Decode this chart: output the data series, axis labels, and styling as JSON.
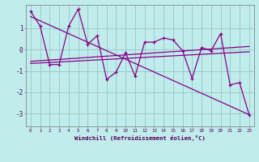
{
  "xlabel": "Windchill (Refroidissement éolien,°C)",
  "xlim": [
    -0.5,
    23.5
  ],
  "ylim": [
    -3.6,
    2.1
  ],
  "xticks": [
    0,
    1,
    2,
    3,
    4,
    5,
    6,
    7,
    8,
    9,
    10,
    11,
    12,
    13,
    14,
    15,
    16,
    17,
    18,
    19,
    20,
    21,
    22,
    23
  ],
  "yticks": [
    -3,
    -2,
    -1,
    0,
    1
  ],
  "bg_color": "#c0ecec",
  "line_color": "#880088",
  "grid_color": "#99cccc",
  "data_x": [
    0,
    1,
    2,
    3,
    4,
    5,
    6,
    7,
    8,
    9,
    10,
    11,
    12,
    13,
    14,
    15,
    16,
    17,
    18,
    19,
    20,
    21,
    22,
    23
  ],
  "data_y": [
    1.8,
    1.1,
    -0.7,
    -0.7,
    1.1,
    1.9,
    0.25,
    0.65,
    -1.4,
    -1.05,
    -0.15,
    -1.25,
    0.35,
    0.35,
    0.55,
    0.45,
    -0.05,
    -1.35,
    0.1,
    -0.05,
    0.75,
    -1.65,
    -1.55,
    -3.05
  ],
  "reg_y0": 1.55,
  "reg_y1": -3.05,
  "avg_y0": -0.65,
  "avg_y1": -0.1,
  "smooth_y0": -0.55,
  "smooth_y1": 0.15
}
